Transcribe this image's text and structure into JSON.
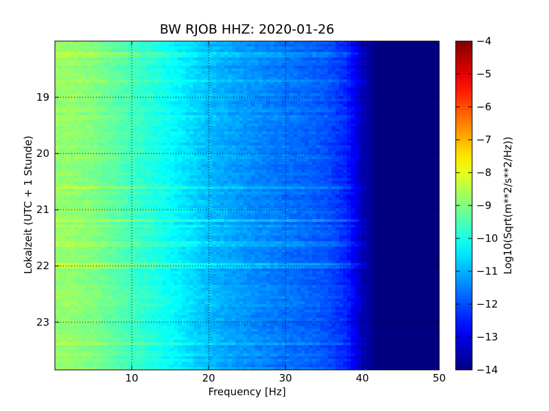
{
  "chart_data": {
    "type": "heatmap",
    "title": "BW RJOB HHZ: 2020-01-26",
    "xlabel": "Frequency [Hz]",
    "ylabel": "Lokalzeit (UTC + 1 Stunde)",
    "xlim": [
      0,
      50
    ],
    "ylim": [
      18.0,
      23.85
    ],
    "y_axis_inverted": true,
    "x_ticks": [
      10,
      20,
      30,
      40,
      50
    ],
    "x_tick_labels": [
      "10",
      "20",
      "30",
      "40",
      "50"
    ],
    "y_ticks": [
      19,
      20,
      21,
      22,
      23
    ],
    "y_tick_labels": [
      "19",
      "20",
      "21",
      "22",
      "23"
    ],
    "grid": true,
    "colormap": "jet",
    "colorbar": {
      "label": "Log10(Sqrt(m**2/s**2/Hz))",
      "range": [
        -14,
        -4
      ],
      "ticks": [
        -4,
        -5,
        -6,
        -7,
        -8,
        -9,
        -10,
        -11,
        -12,
        -13,
        -14
      ],
      "tick_labels": [
        "−4",
        "−5",
        "−6",
        "−7",
        "−8",
        "−9",
        "−10",
        "−11",
        "−12",
        "−13",
        "−14"
      ]
    },
    "spectral_profile": {
      "frequency_hz": [
        0,
        2,
        5,
        10,
        15,
        20,
        25,
        30,
        35,
        38,
        40,
        42,
        50
      ],
      "log10_amplitude": [
        -8.8,
        -8.8,
        -9.0,
        -9.6,
        -10.2,
        -10.9,
        -11.3,
        -11.6,
        -11.9,
        -12.4,
        -13.4,
        -14,
        -14
      ]
    },
    "horizontal_bands": [
      {
        "time_h": 18.25,
        "offset": 0.35
      },
      {
        "time_h": 18.7,
        "offset": 0.3
      },
      {
        "time_h": 19.35,
        "offset": 0.25
      },
      {
        "time_h": 20.6,
        "offset": 0.4
      },
      {
        "time_h": 21.2,
        "offset": 0.5
      },
      {
        "time_h": 21.28,
        "offset": 0.4
      },
      {
        "time_h": 21.6,
        "offset": 0.3
      },
      {
        "time_h": 22.0,
        "offset": 0.45
      },
      {
        "time_h": 23.4,
        "offset": 0.35
      }
    ],
    "colors": {
      "background": "#ffffff",
      "frame": "#000000",
      "grid": "#000000",
      "low_end": "#00007f",
      "high_end": "#7f0000"
    }
  }
}
